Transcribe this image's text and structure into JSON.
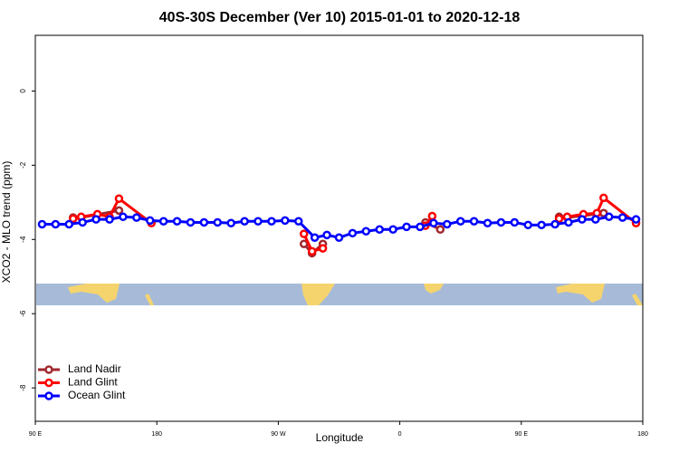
{
  "chart_data": {
    "type": "line",
    "title": "40S-30S December (Ver 10)   2015-01-01 to 2020-12-18",
    "x_label": "Longitude",
    "y_label": "XCO2 - MLO trend (ppm)",
    "xlim": [
      90,
      540
    ],
    "xticks": [
      {
        "value": 90,
        "label": "90 E"
      },
      {
        "value": 180,
        "label": "180"
      },
      {
        "value": 270,
        "label": "90 W"
      },
      {
        "value": 360,
        "label": "0"
      },
      {
        "value": 450,
        "label": "90 E"
      },
      {
        "value": 540,
        "label": "180"
      }
    ],
    "ylim": [
      -8.9,
      1.5
    ],
    "yticks": [
      0,
      -2,
      -4,
      -6,
      -8
    ],
    "legend": "bottom-left",
    "series": [
      {
        "name": "Land Nadir",
        "color": "#a0282e",
        "x": [
          118,
          124,
          152,
          null,
          289,
          295,
          303,
          null,
          379,
          390,
          null,
          478,
          484,
          511
        ],
        "values": [
          -3.41,
          -3.41,
          -3.22,
          null,
          -4.12,
          -4.37,
          -4.12,
          null,
          -3.54,
          -3.73,
          null,
          -3.39,
          -3.41,
          -3.29
        ]
      },
      {
        "name": "Land Glint",
        "color": "#ff0000",
        "x": [
          118,
          124,
          136,
          145,
          152,
          176,
          null,
          289,
          295,
          303,
          null,
          379,
          384,
          null,
          478,
          484,
          496,
          506,
          511,
          535
        ],
        "values": [
          -3.44,
          -3.39,
          -3.32,
          -3.39,
          -2.9,
          -3.56,
          null,
          -3.85,
          -4.32,
          -4.24,
          null,
          -3.63,
          -3.37,
          null,
          -3.44,
          -3.39,
          -3.32,
          -3.29,
          -2.88,
          -3.56
        ]
      },
      {
        "name": "Ocean Glint",
        "color": "#0000ff",
        "x": [
          95,
          105,
          115,
          125,
          135,
          145,
          155,
          165,
          175,
          185,
          195,
          205,
          215,
          225,
          235,
          245,
          255,
          265,
          275,
          285,
          297,
          306,
          315,
          325,
          335,
          345,
          355,
          365,
          375,
          385,
          395,
          405,
          415,
          425,
          435,
          445,
          455,
          465,
          475,
          485,
          495,
          505,
          515,
          525,
          535
        ],
        "values": [
          -3.59,
          -3.59,
          -3.59,
          -3.54,
          -3.46,
          -3.46,
          -3.39,
          -3.41,
          -3.49,
          -3.51,
          -3.51,
          -3.54,
          -3.54,
          -3.54,
          -3.56,
          -3.51,
          -3.51,
          -3.51,
          -3.49,
          -3.51,
          -3.95,
          -3.88,
          -3.95,
          -3.83,
          -3.78,
          -3.73,
          -3.73,
          -3.66,
          -3.66,
          -3.56,
          -3.59,
          -3.51,
          -3.51,
          -3.56,
          -3.54,
          -3.54,
          -3.61,
          -3.61,
          -3.59,
          -3.54,
          -3.46,
          -3.46,
          -3.39,
          -3.41,
          -3.46
        ]
      }
    ]
  }
}
